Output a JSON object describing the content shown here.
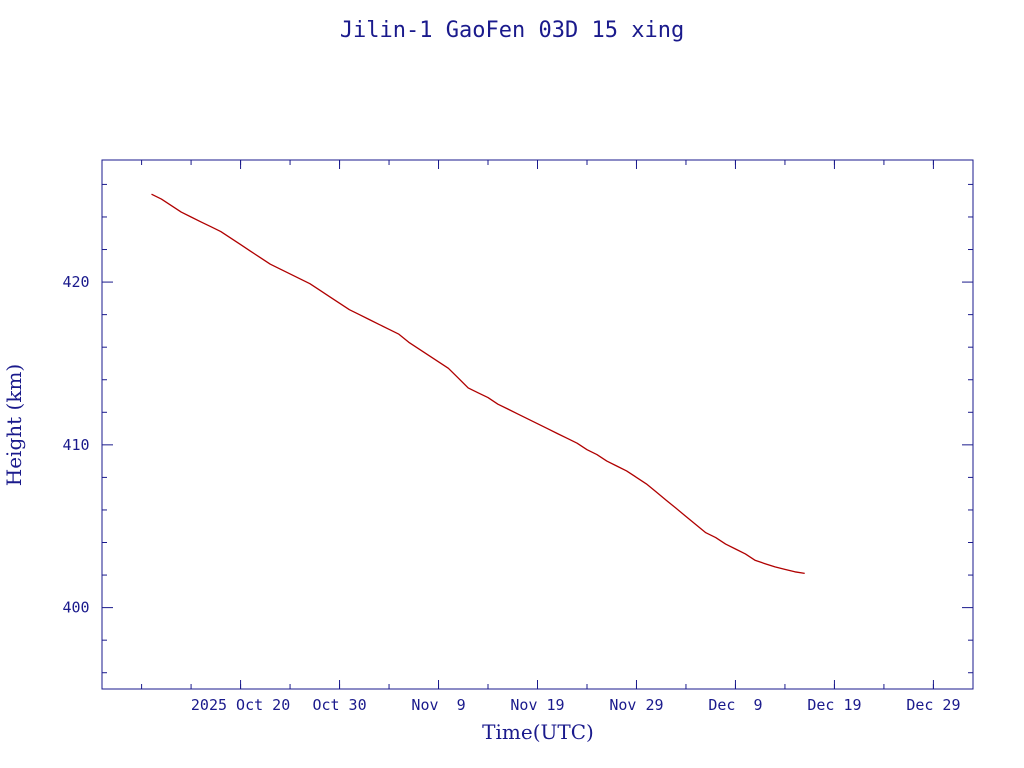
{
  "colors": {
    "axis": "#1a1a8c",
    "text": "#1a1a8c",
    "series": "#b00000",
    "background": "#ffffff"
  },
  "chart_data": {
    "type": "line",
    "title": "Jilin-1 GaoFen 03D 15 xing",
    "xlabel": "Time(UTC)",
    "ylabel": "Height (km)",
    "x_is_date": true,
    "xlim": [
      "2025-10-06",
      "2026-01-02"
    ],
    "ylim": [
      395,
      427.5
    ],
    "x_ticks": [
      {
        "date": "2025-10-20",
        "label": "2025 Oct 20"
      },
      {
        "date": "2025-10-30",
        "label": "Oct 30"
      },
      {
        "date": "2025-11-09",
        "label": "Nov  9"
      },
      {
        "date": "2025-11-19",
        "label": "Nov 19"
      },
      {
        "date": "2025-11-29",
        "label": "Nov 29"
      },
      {
        "date": "2025-12-09",
        "label": "Dec  9"
      },
      {
        "date": "2025-12-19",
        "label": "Dec 19"
      },
      {
        "date": "2025-12-29",
        "label": "Dec 29"
      }
    ],
    "x_minor_step_days": 5,
    "y_ticks": [
      400,
      410,
      420
    ],
    "y_minor_step": 2,
    "series": [
      {
        "x": [
          "2025-10-11",
          "2025-10-12",
          "2025-10-13",
          "2025-10-14",
          "2025-10-15",
          "2025-10-16",
          "2025-10-17",
          "2025-10-18",
          "2025-10-19",
          "2025-10-20",
          "2025-10-21",
          "2025-10-22",
          "2025-10-23",
          "2025-10-24",
          "2025-10-25",
          "2025-10-26",
          "2025-10-27",
          "2025-10-28",
          "2025-10-29",
          "2025-10-30",
          "2025-10-31",
          "2025-11-01",
          "2025-11-02",
          "2025-11-03",
          "2025-11-04",
          "2025-11-05",
          "2025-11-06",
          "2025-11-07",
          "2025-11-08",
          "2025-11-09",
          "2025-11-10",
          "2025-11-11",
          "2025-11-12",
          "2025-11-13",
          "2025-11-14",
          "2025-11-15",
          "2025-11-16",
          "2025-11-17",
          "2025-11-18",
          "2025-11-19",
          "2025-11-20",
          "2025-11-21",
          "2025-11-22",
          "2025-11-23",
          "2025-11-24",
          "2025-11-25",
          "2025-11-26",
          "2025-11-27",
          "2025-11-28",
          "2025-11-29",
          "2025-11-30",
          "2025-12-01",
          "2025-12-02",
          "2025-12-03",
          "2025-12-04",
          "2025-12-05",
          "2025-12-06",
          "2025-12-07",
          "2025-12-08",
          "2025-12-09",
          "2025-12-10",
          "2025-12-11",
          "2025-12-12",
          "2025-12-13",
          "2025-12-14",
          "2025-12-15",
          "2025-12-16"
        ],
        "y": [
          425.4,
          425.1,
          424.7,
          424.3,
          424.0,
          423.7,
          423.4,
          423.1,
          422.7,
          422.3,
          421.9,
          421.5,
          421.1,
          420.8,
          420.5,
          420.2,
          419.9,
          419.5,
          419.1,
          418.7,
          418.3,
          418.0,
          417.7,
          417.4,
          417.1,
          416.8,
          416.3,
          415.9,
          415.5,
          415.1,
          414.7,
          414.1,
          413.5,
          413.2,
          412.9,
          412.5,
          412.2,
          411.9,
          411.6,
          411.3,
          411.0,
          410.7,
          410.4,
          410.1,
          409.7,
          409.4,
          409.0,
          408.7,
          408.4,
          408.0,
          407.6,
          407.1,
          406.6,
          406.1,
          405.6,
          405.1,
          404.6,
          404.3,
          403.9,
          403.6,
          403.3,
          402.9,
          402.7,
          402.5,
          402.35,
          402.2,
          402.1
        ]
      }
    ]
  }
}
